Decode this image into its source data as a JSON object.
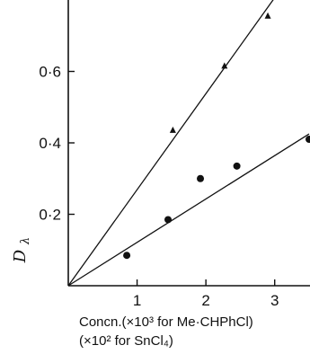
{
  "chart_data": {
    "type": "scatter",
    "title": "",
    "ylabel": "D",
    "ylabel_subscript": "λ",
    "xlabel_line1": "Concn.(×10³ for Me·CHPhCl)",
    "xlabel_line2": "(×10² for SnCl₄)",
    "xlim": [
      0,
      3.5
    ],
    "ylim": [
      0,
      0.8
    ],
    "x_ticks": [
      1,
      2,
      3
    ],
    "x_tick_labels": [
      "1",
      "2",
      "3"
    ],
    "y_ticks": [
      0.2,
      0.4,
      0.6
    ],
    "y_tick_labels": [
      "0·2",
      "0·4",
      "0·6"
    ],
    "grid": false,
    "series": [
      {
        "marker": "triangle",
        "points": [
          {
            "x": 1.52,
            "y": 0.435
          },
          {
            "x": 2.27,
            "y": 0.615
          },
          {
            "x": 2.9,
            "y": 0.755
          }
        ],
        "fit_line": {
          "x0": 0,
          "y0": 0,
          "x1": 3.05,
          "y1": 0.82
        }
      },
      {
        "marker": "circle",
        "points": [
          {
            "x": 0.85,
            "y": 0.085
          },
          {
            "x": 1.45,
            "y": 0.185
          },
          {
            "x": 1.92,
            "y": 0.3
          },
          {
            "x": 2.45,
            "y": 0.335
          },
          {
            "x": 3.5,
            "y": 0.41
          }
        ],
        "fit_line": {
          "x0": 0,
          "y0": 0,
          "x1": 3.5,
          "y1": 0.425
        }
      }
    ]
  }
}
